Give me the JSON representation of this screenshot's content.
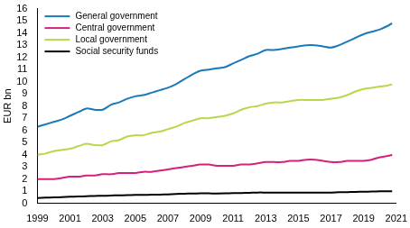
{
  "chart_data": {
    "type": "line",
    "y_label": "EUR bn",
    "x": [
      1999,
      1999.5,
      2000,
      2000.5,
      2001,
      2001.5,
      2002,
      2002.5,
      2003,
      2003.5,
      2004,
      2004.5,
      2005,
      2005.5,
      2006,
      2006.5,
      2007,
      2007.5,
      2008,
      2008.5,
      2009,
      2009.5,
      2010,
      2010.5,
      2011,
      2011.5,
      2012,
      2012.5,
      2013,
      2013.5,
      2014,
      2014.5,
      2015,
      2015.5,
      2016,
      2016.5,
      2017,
      2017.5,
      2018,
      2018.5,
      2019,
      2019.5,
      2020,
      2020.5,
      2020.75
    ],
    "series": [
      {
        "name": "General government",
        "color": "#1a7ab8",
        "values": [
          6.3,
          6.5,
          6.7,
          6.9,
          7.2,
          7.5,
          7.8,
          7.7,
          7.7,
          8.1,
          8.3,
          8.6,
          8.8,
          8.9,
          9.1,
          9.3,
          9.5,
          9.8,
          10.2,
          10.6,
          10.9,
          11.0,
          11.1,
          11.2,
          11.5,
          11.8,
          12.1,
          12.3,
          12.6,
          12.6,
          12.7,
          12.8,
          12.9,
          13.0,
          13.0,
          12.9,
          12.8,
          13.0,
          13.3,
          13.6,
          13.9,
          14.1,
          14.3,
          14.6,
          14.8
        ]
      },
      {
        "name": "Central government",
        "color": "#d6207a",
        "values": [
          2.0,
          2.0,
          2.0,
          2.1,
          2.2,
          2.2,
          2.3,
          2.3,
          2.4,
          2.4,
          2.5,
          2.5,
          2.5,
          2.6,
          2.6,
          2.7,
          2.8,
          2.9,
          3.0,
          3.1,
          3.2,
          3.2,
          3.1,
          3.1,
          3.1,
          3.2,
          3.2,
          3.3,
          3.4,
          3.4,
          3.4,
          3.5,
          3.5,
          3.6,
          3.6,
          3.5,
          3.4,
          3.4,
          3.5,
          3.5,
          3.5,
          3.6,
          3.8,
          3.9,
          4.0
        ]
      },
      {
        "name": "Local government",
        "color": "#b7d84b",
        "values": [
          4.0,
          4.1,
          4.3,
          4.4,
          4.5,
          4.7,
          4.9,
          4.8,
          4.8,
          5.1,
          5.2,
          5.5,
          5.6,
          5.6,
          5.8,
          5.9,
          6.1,
          6.3,
          6.6,
          6.8,
          7.0,
          7.0,
          7.1,
          7.2,
          7.4,
          7.7,
          7.9,
          8.0,
          8.2,
          8.3,
          8.3,
          8.4,
          8.5,
          8.5,
          8.5,
          8.5,
          8.6,
          8.7,
          8.9,
          9.2,
          9.4,
          9.5,
          9.6,
          9.7,
          9.8
        ]
      },
      {
        "name": "Social security funds",
        "color": "#000000",
        "values": [
          0.45,
          0.48,
          0.5,
          0.52,
          0.55,
          0.57,
          0.6,
          0.62,
          0.63,
          0.65,
          0.67,
          0.68,
          0.7,
          0.7,
          0.72,
          0.73,
          0.75,
          0.78,
          0.8,
          0.82,
          0.83,
          0.83,
          0.82,
          0.83,
          0.85,
          0.86,
          0.88,
          0.9,
          0.9,
          0.9,
          0.9,
          0.9,
          0.9,
          0.9,
          0.9,
          0.9,
          0.9,
          0.92,
          0.93,
          0.95,
          0.97,
          0.98,
          1.0,
          1.0,
          1.0
        ]
      }
    ],
    "xlim": [
      1999,
      2021
    ],
    "xticks": [
      1999,
      2001,
      2003,
      2005,
      2007,
      2009,
      2011,
      2013,
      2015,
      2017,
      2019,
      2021
    ],
    "ylim": [
      0,
      16
    ],
    "yticks": [
      0,
      1,
      2,
      3,
      4,
      5,
      6,
      7,
      8,
      9,
      10,
      11,
      12,
      13,
      14,
      15,
      16
    ],
    "grid": false,
    "legend": "upper left"
  }
}
